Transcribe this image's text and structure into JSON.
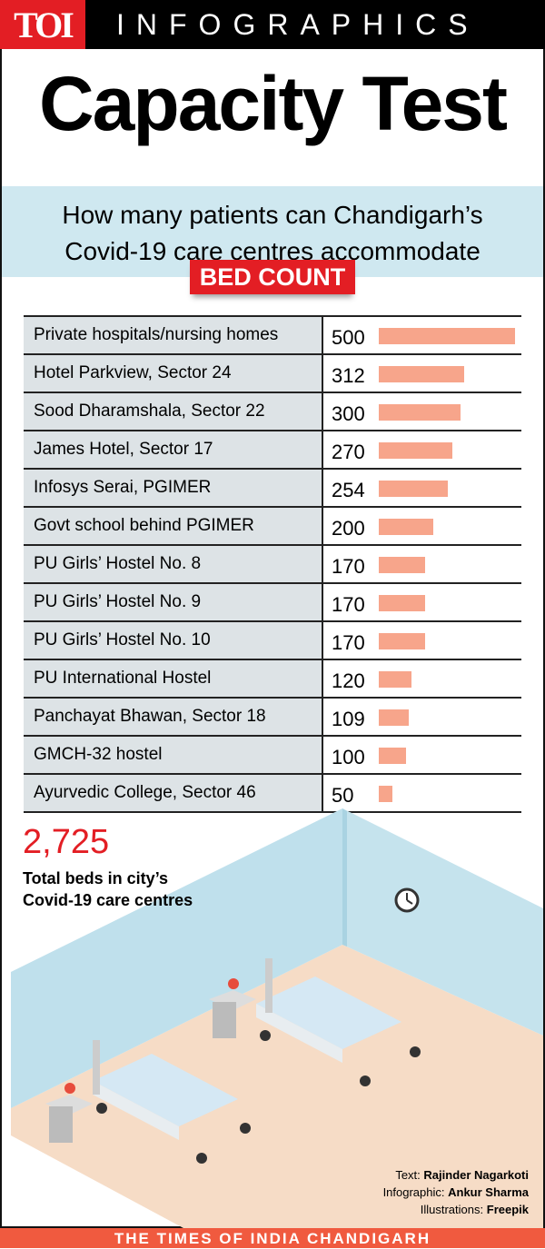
{
  "header": {
    "logo": "TOI",
    "section": "INFOGRAPHICS"
  },
  "title": "Capacity Test",
  "subtitle": [
    "How many patients can Chandigarh’s",
    "Covid-19 care centres accommodate"
  ],
  "badge": "BED COUNT",
  "chart_data": {
    "type": "bar",
    "orientation": "horizontal",
    "title": "BED COUNT",
    "bar_color": "#f7a58b",
    "categories": [
      "Private hospitals/nursing homes",
      "Hotel Parkview, Sector 24",
      "Sood Dharamshala, Sector 22",
      "James Hotel, Sector 17",
      "Infosys Serai, PGIMER",
      "Govt school behind PGIMER",
      "PU Girls’ Hostel No. 8",
      "PU Girls’ Hostel No. 9",
      "PU Girls’ Hostel No. 10",
      "PU International Hostel",
      "Panchayat Bhawan, Sector 18",
      "GMCH-32 hostel",
      "Ayurvedic College, Sector 46"
    ],
    "values": [
      500,
      312,
      300,
      270,
      254,
      200,
      170,
      170,
      170,
      120,
      109,
      100,
      50
    ],
    "labels": [
      "500",
      "312",
      "300",
      "270",
      "254",
      "200",
      "170",
      "170",
      "170",
      "120",
      "109",
      "100",
      "50"
    ]
  },
  "total": {
    "value": "2,725",
    "label": "Total beds in city’s Covid-19 care centres"
  },
  "credits": [
    {
      "role": "Text:",
      "name": "Rajinder Nagarkoti"
    },
    {
      "role": "Infographic:",
      "name": "Ankur Sharma"
    },
    {
      "role": "Illustrations:",
      "name": "Freepik"
    }
  ],
  "footer": "THE TIMES OF INDIA CHANDIGARH"
}
